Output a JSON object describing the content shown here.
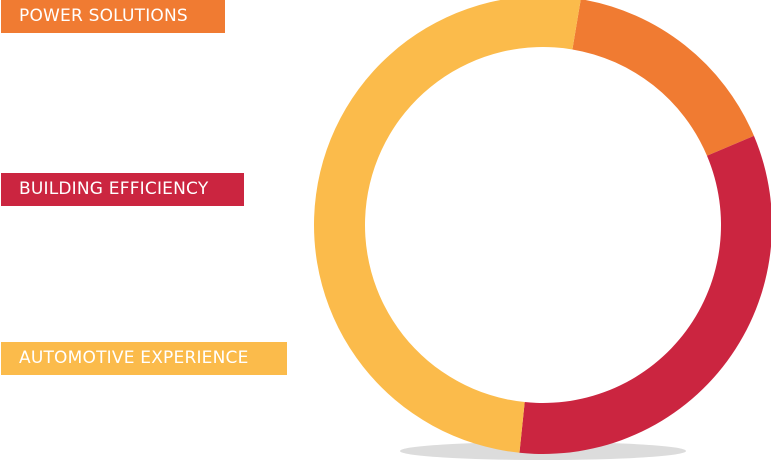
{
  "chart_data": {
    "type": "pie",
    "style": "donut",
    "legend_placement": "left",
    "series": [
      {
        "name": "POWER SOLUTIONS",
        "value": 16,
        "color": "#f07b32"
      },
      {
        "name": "BUILDING EFFICIENCY",
        "value": 33,
        "color": "#cb2540"
      },
      {
        "name": "AUTOMOTIVE EXPERIENCE",
        "value": 51,
        "color": "#fbbb4b"
      }
    ]
  },
  "colors": {
    "power": "#f07b32",
    "building": "#cb2540",
    "automotive": "#fbbb4b",
    "shadow": "#dcdcdc",
    "background": "#ffffff"
  }
}
